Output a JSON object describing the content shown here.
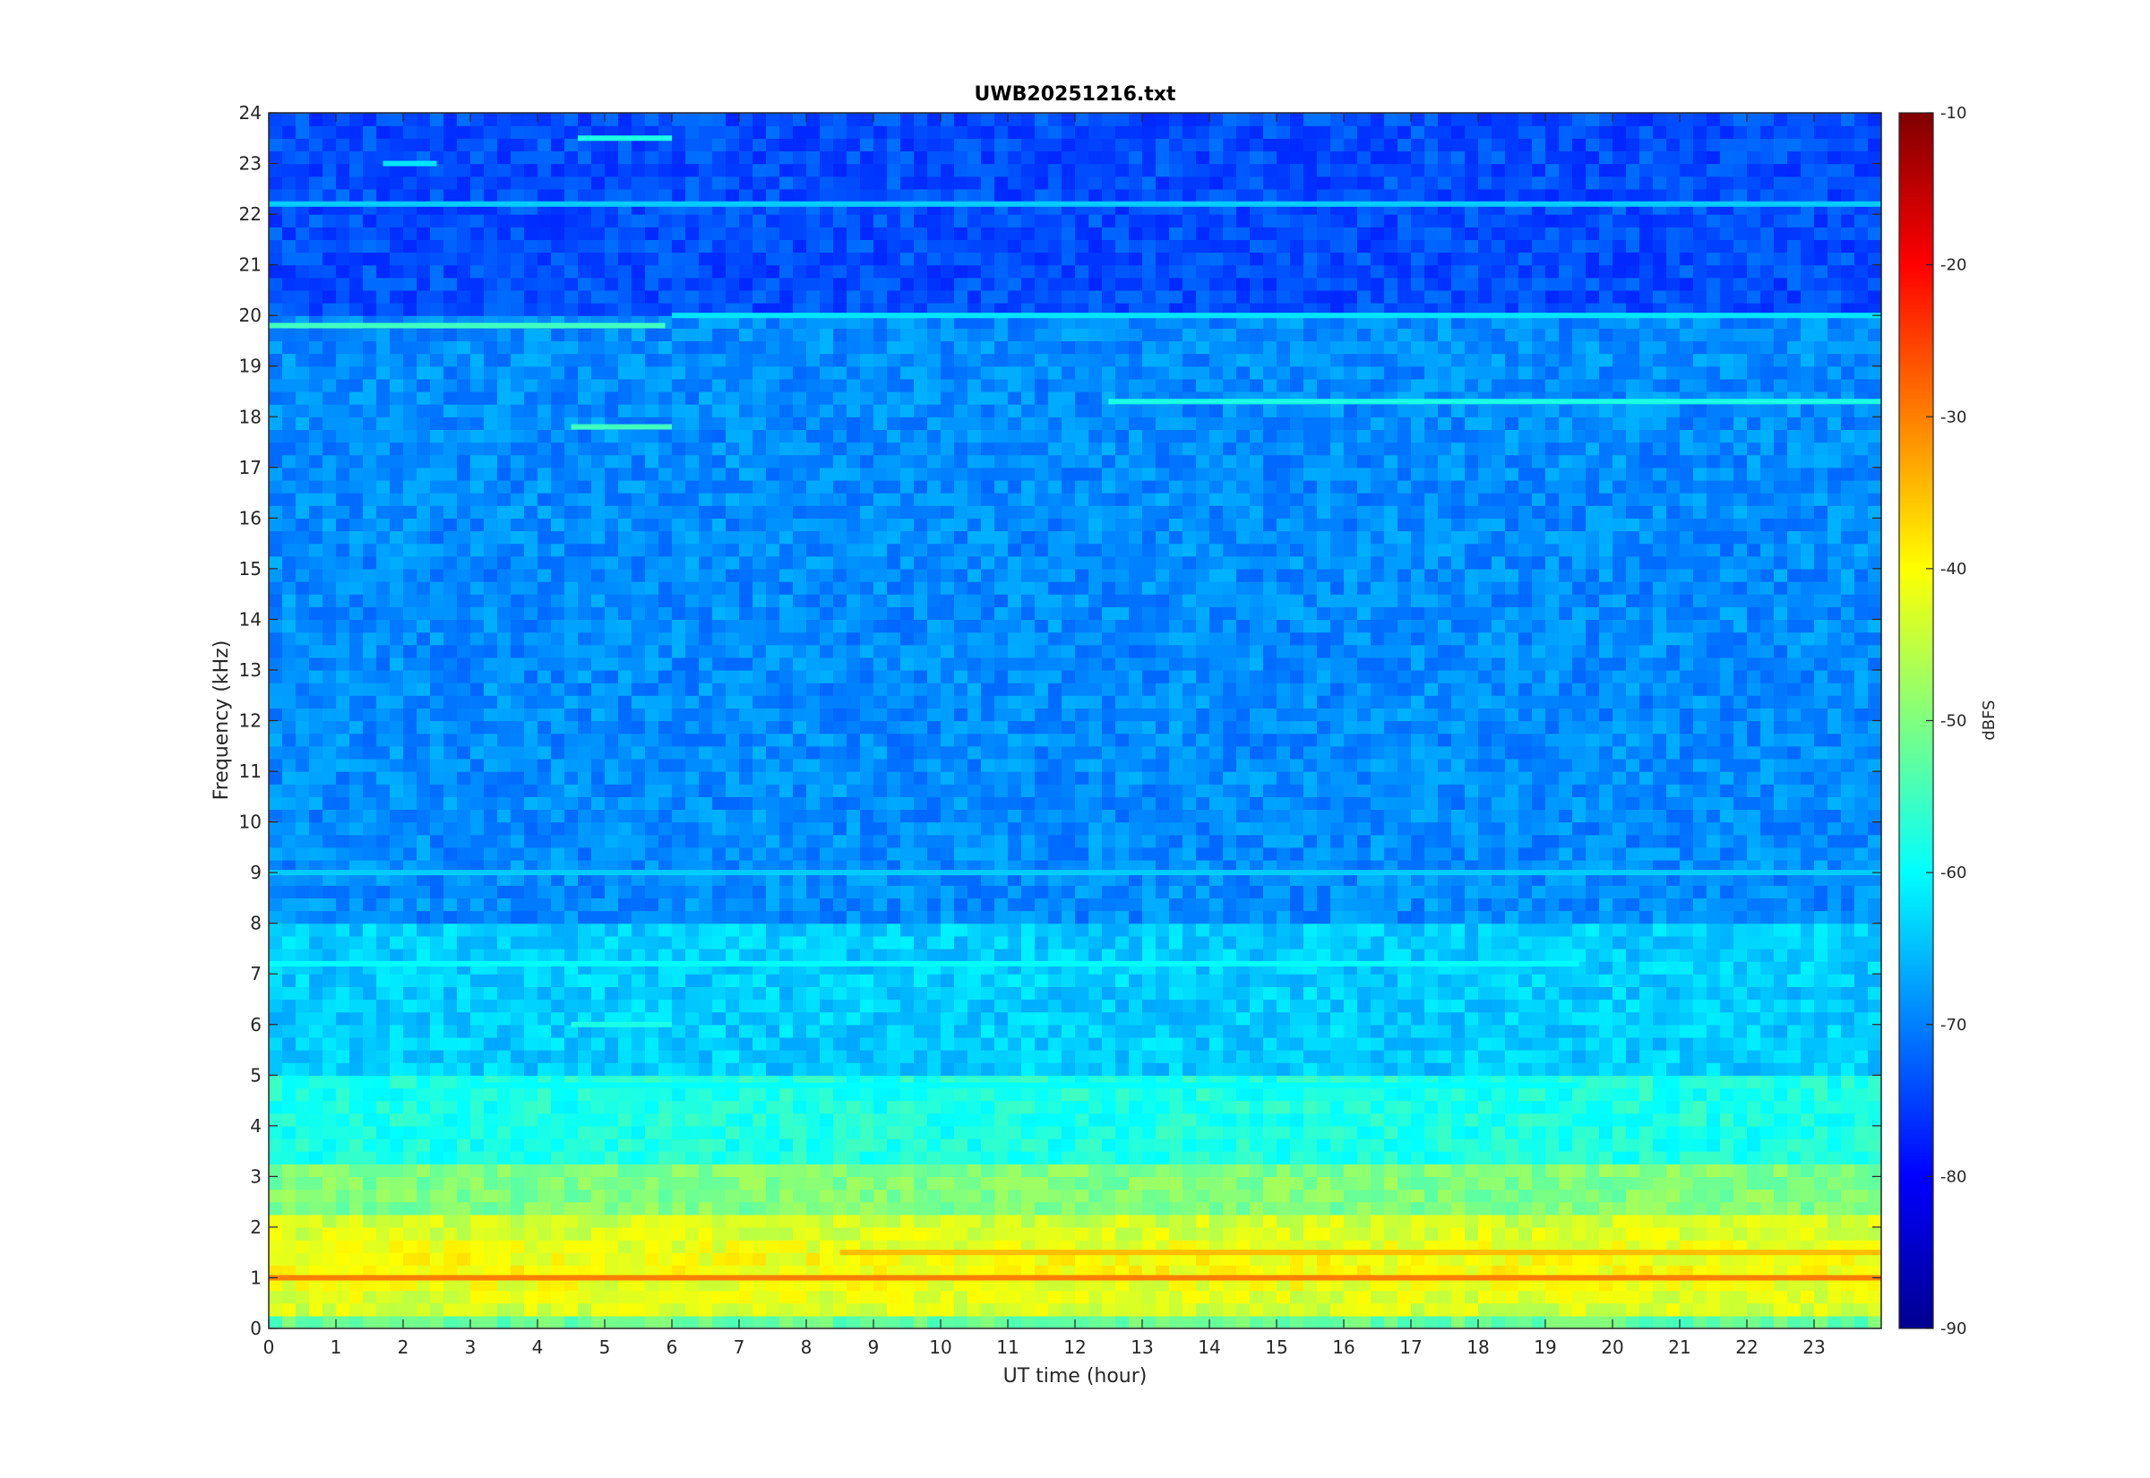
{
  "chart_data": {
    "type": "heatmap",
    "title": "UWB20251216.txt",
    "xlabel": "UT time (hour)",
    "ylabel": "Frequency (kHz)",
    "xlim": [
      0,
      24
    ],
    "ylim": [
      0,
      24
    ],
    "x_ticks": [
      "0",
      "1",
      "2",
      "3",
      "4",
      "5",
      "6",
      "7",
      "8",
      "9",
      "10",
      "11",
      "12",
      "13",
      "14",
      "15",
      "16",
      "17",
      "18",
      "19",
      "20",
      "21",
      "22",
      "23"
    ],
    "y_ticks": [
      "0",
      "1",
      "2",
      "3",
      "4",
      "5",
      "6",
      "7",
      "8",
      "9",
      "10",
      "11",
      "12",
      "13",
      "14",
      "15",
      "16",
      "17",
      "18",
      "19",
      "20",
      "21",
      "22",
      "23",
      "24"
    ],
    "colorbar": {
      "label": "dBFS",
      "range": [
        -90,
        -10
      ],
      "ticks": [
        "-10",
        "-20",
        "-30",
        "-40",
        "-50",
        "-60",
        "-70",
        "-80",
        "-90"
      ],
      "colormap": "jet"
    },
    "grid": false,
    "bands": [
      {
        "f_khz": 1.0,
        "t": [
          0,
          24
        ],
        "dbfs": -30
      },
      {
        "f_khz": 1.5,
        "t": [
          8.5,
          24
        ],
        "dbfs": -35
      },
      {
        "f_khz": 4.8,
        "t": [
          3,
          19.5
        ],
        "dbfs": -60
      },
      {
        "f_khz": 6.0,
        "t": [
          4.5,
          6
        ],
        "dbfs": -58
      },
      {
        "f_khz": 7.2,
        "t": [
          0,
          19.5
        ],
        "dbfs": -60
      },
      {
        "f_khz": 9.0,
        "t": [
          0,
          24
        ],
        "dbfs": -64
      },
      {
        "f_khz": 17.8,
        "t": [
          4.5,
          6
        ],
        "dbfs": -55
      },
      {
        "f_khz": 18.3,
        "t": [
          12.5,
          24
        ],
        "dbfs": -58
      },
      {
        "f_khz": 19.8,
        "t": [
          0,
          5.9
        ],
        "dbfs": -55
      },
      {
        "f_khz": 20.0,
        "t": [
          6,
          24
        ],
        "dbfs": -62
      },
      {
        "f_khz": 22.2,
        "t": [
          0,
          24
        ],
        "dbfs": -64
      },
      {
        "f_khz": 23.0,
        "t": [
          1.7,
          2.5
        ],
        "dbfs": -62
      },
      {
        "f_khz": 23.5,
        "t": [
          4.6,
          6
        ],
        "dbfs": -58
      }
    ]
  }
}
